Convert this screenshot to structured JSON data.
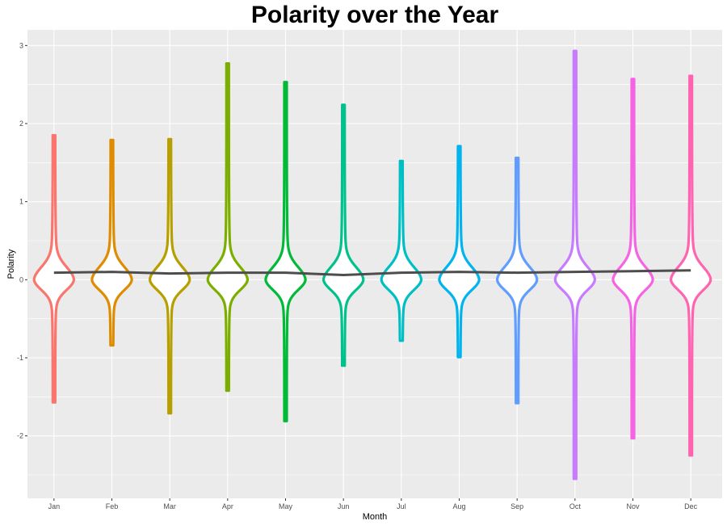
{
  "chart_data": {
    "type": "violin",
    "title": "Polarity over the Year",
    "xlabel": "Month",
    "ylabel": "Polarity",
    "categories": [
      "Jan",
      "Feb",
      "Mar",
      "Apr",
      "May",
      "Jun",
      "Jul",
      "Aug",
      "Sep",
      "Oct",
      "Nov",
      "Dec"
    ],
    "ylim": [
      -2.8,
      3.2
    ],
    "yticks": [
      -2,
      -1,
      0,
      1,
      2,
      3
    ],
    "grid": true,
    "legend": "none",
    "colors": [
      "#F8766D",
      "#DE8C00",
      "#B79F00",
      "#7CAE00",
      "#00BA38",
      "#00C08B",
      "#00BFC4",
      "#00B4F0",
      "#619CFF",
      "#C77CFF",
      "#F564E3",
      "#FF64B0"
    ],
    "trend_color": "#4d4d4d",
    "series": [
      {
        "month": "Jan",
        "min": -1.57,
        "max": 1.85,
        "mean": 0.09
      },
      {
        "month": "Feb",
        "min": -0.84,
        "max": 1.79,
        "mean": 0.1
      },
      {
        "month": "Mar",
        "min": -1.71,
        "max": 1.8,
        "mean": 0.08
      },
      {
        "month": "Apr",
        "min": -1.42,
        "max": 2.77,
        "mean": 0.09
      },
      {
        "month": "May",
        "min": -1.81,
        "max": 2.53,
        "mean": 0.09
      },
      {
        "month": "Jun",
        "min": -1.1,
        "max": 2.24,
        "mean": 0.06
      },
      {
        "month": "Jul",
        "min": -0.78,
        "max": 1.52,
        "mean": 0.09
      },
      {
        "month": "Aug",
        "min": -0.99,
        "max": 1.71,
        "mean": 0.1
      },
      {
        "month": "Sep",
        "min": -1.58,
        "max": 1.56,
        "mean": 0.09
      },
      {
        "month": "Oct",
        "min": -2.55,
        "max": 2.93,
        "mean": 0.1
      },
      {
        "month": "Nov",
        "min": -2.03,
        "max": 2.57,
        "mean": 0.11
      },
      {
        "month": "Dec",
        "min": -2.25,
        "max": 2.61,
        "mean": 0.12
      }
    ]
  }
}
